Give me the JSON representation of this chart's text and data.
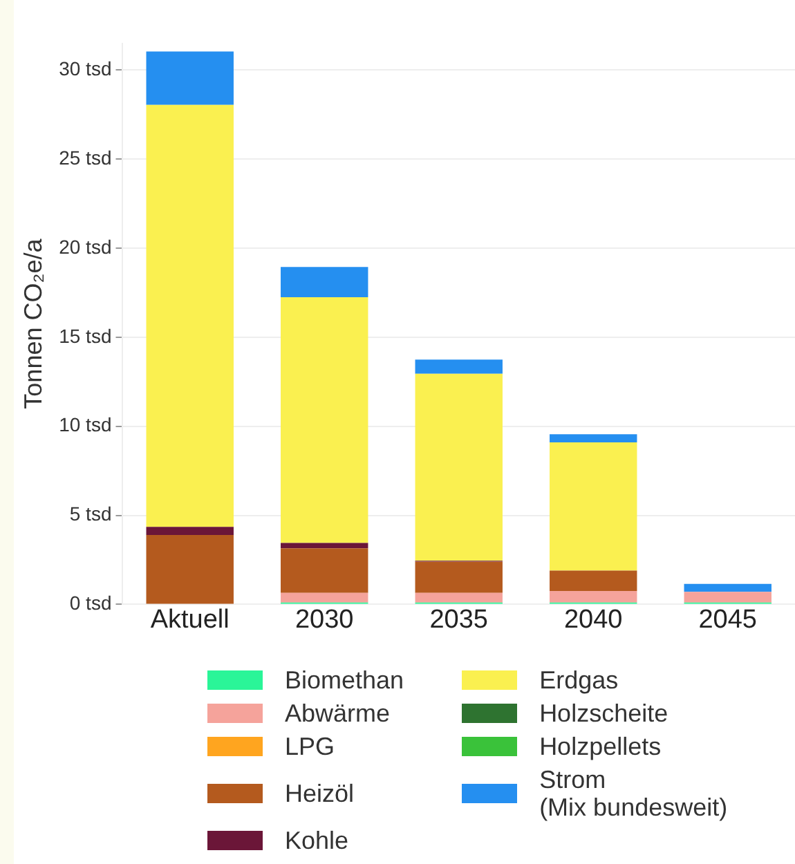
{
  "chart_data": {
    "type": "bar",
    "stacked": true,
    "ylabel": "Tonnen CO₂e/a",
    "categories": [
      "Aktuell",
      "2030",
      "2035",
      "2040",
      "2045"
    ],
    "series": [
      {
        "name": "Biomethan",
        "color": "#2af598",
        "values": [
          0,
          0.1,
          0.1,
          0.1,
          0.1
        ]
      },
      {
        "name": "Abwärme",
        "color": "#f5a39b",
        "values": [
          0,
          0.55,
          0.55,
          0.65,
          0.6
        ]
      },
      {
        "name": "LPG",
        "color": "#ffa51f",
        "values": [
          0,
          0,
          0,
          0,
          0
        ]
      },
      {
        "name": "Heizöl",
        "color": "#b45a1e",
        "values": [
          3.9,
          2.5,
          1.75,
          1.15,
          0
        ]
      },
      {
        "name": "Kohle",
        "color": "#6b1638",
        "values": [
          0.45,
          0.3,
          0.05,
          0,
          0
        ]
      },
      {
        "name": "Erdgas",
        "color": "#faf050",
        "values": [
          23.7,
          13.8,
          10.5,
          7.2,
          0
        ]
      },
      {
        "name": "Holzscheite",
        "color": "#2e7330",
        "values": [
          0,
          0,
          0,
          0,
          0
        ]
      },
      {
        "name": "Holzpellets",
        "color": "#3ac23a",
        "values": [
          0,
          0,
          0,
          0,
          0
        ]
      },
      {
        "name": "Strom\n(Mix bundesweit)",
        "color": "#258ff0",
        "values": [
          3.0,
          1.7,
          0.8,
          0.45,
          0.45
        ]
      }
    ],
    "ylim": [
      0,
      31.5
    ],
    "yticks": [
      {
        "value": 0,
        "label": "0 tsd"
      },
      {
        "value": 5,
        "label": "5 tsd"
      },
      {
        "value": 10,
        "label": "10 tsd"
      },
      {
        "value": 15,
        "label": "15 tsd"
      },
      {
        "value": 20,
        "label": "20 tsd"
      },
      {
        "value": 25,
        "label": "25 tsd"
      },
      {
        "value": 30,
        "label": "30 tsd"
      }
    ],
    "grid": "y",
    "legend": "bottom"
  }
}
